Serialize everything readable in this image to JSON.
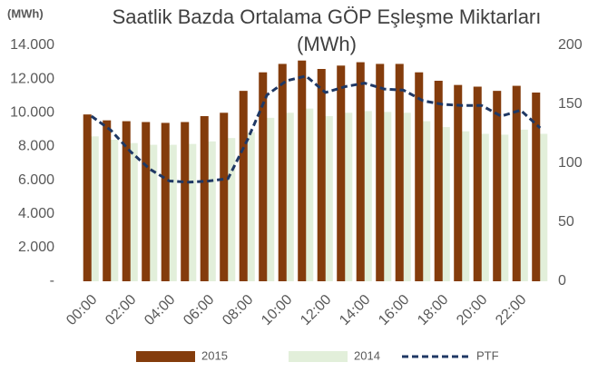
{
  "chart_data": {
    "type": "bar_line",
    "title": "Saatlik Bazda Ortalama GÖP Eşleşme Miktarları (MWh)",
    "y_label": "(MWh)",
    "categories": [
      "00:00",
      null,
      "02:00",
      null,
      "04:00",
      null,
      "06:00",
      null,
      "08:00",
      null,
      "10:00",
      null,
      "12:00",
      null,
      "14:00",
      null,
      "16:00",
      null,
      "18:00",
      null,
      "20:00",
      null,
      "22:00",
      null
    ],
    "series": [
      {
        "name": "2015",
        "type": "bar",
        "color": "#843c0c",
        "values": [
          9900,
          9550,
          9500,
          9450,
          9400,
          9450,
          9800,
          10000,
          11300,
          12400,
          12900,
          13100,
          12600,
          12800,
          13000,
          12900,
          12900,
          12400,
          11900,
          11650,
          11550,
          11300,
          11600,
          11200
        ]
      },
      {
        "name": "2014",
        "type": "bar",
        "color": "#e2efda",
        "values": [
          8600,
          8400,
          8200,
          8100,
          8100,
          8150,
          8300,
          8500,
          8850,
          9700,
          10000,
          10250,
          9800,
          10000,
          10100,
          10050,
          10000,
          9500,
          9150,
          8900,
          8750,
          8700,
          9000,
          8750
        ]
      },
      {
        "name": "PTF",
        "type": "line",
        "axis": "y2",
        "color": "#1f3864",
        "values": [
          140,
          128,
          110,
          95,
          85,
          84,
          85,
          87,
          120,
          158,
          170,
          174,
          160,
          165,
          168,
          163,
          162,
          153,
          150,
          149,
          149,
          140,
          145,
          130
        ]
      }
    ],
    "ylim": [
      0,
      14000
    ],
    "yticks": [
      {
        "value": 0,
        "label": "-"
      },
      {
        "value": 2000,
        "label": "2.000"
      },
      {
        "value": 4000,
        "label": "4.000"
      },
      {
        "value": 6000,
        "label": "6.000"
      },
      {
        "value": 8000,
        "label": "8.000"
      },
      {
        "value": 10000,
        "label": "10.000"
      },
      {
        "value": 12000,
        "label": "12.000"
      },
      {
        "value": 14000,
        "label": "14.000"
      }
    ],
    "y2lim": [
      0,
      200
    ],
    "y2ticks": [
      0,
      50,
      100,
      150,
      200
    ],
    "legend": "bottom"
  }
}
